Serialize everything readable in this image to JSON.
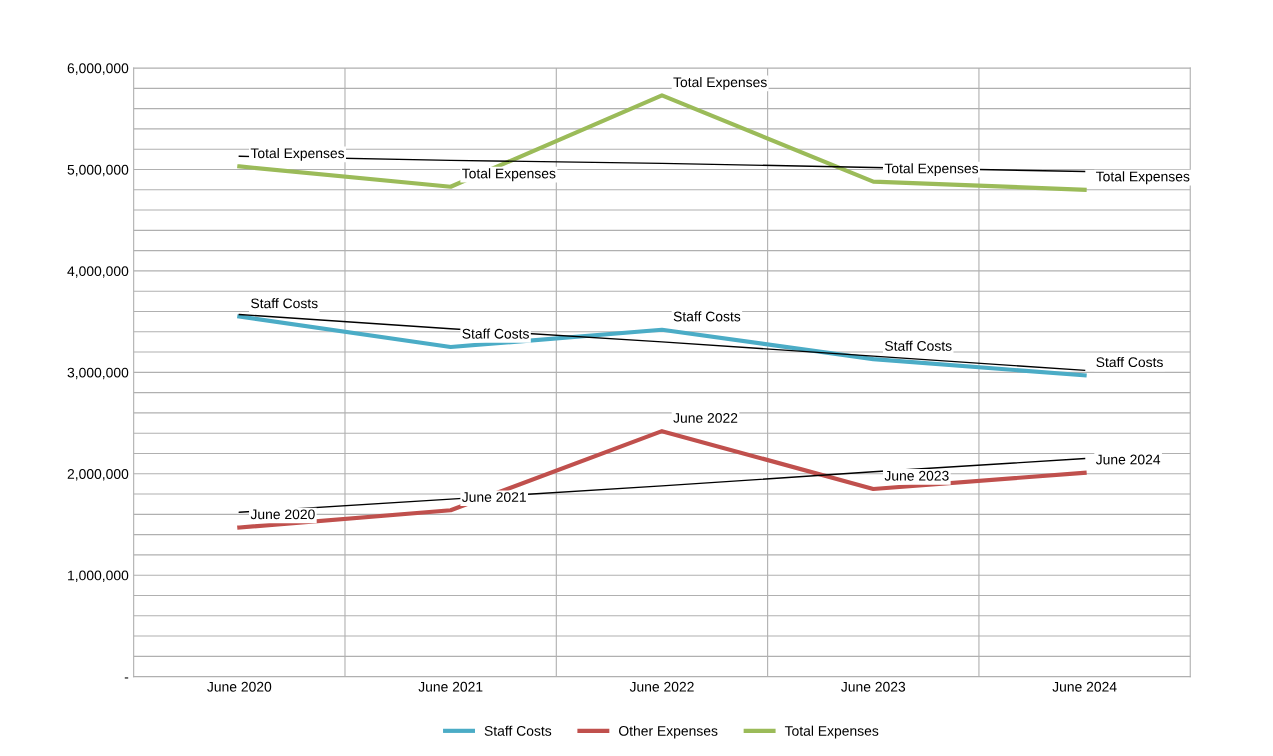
{
  "chart_data": {
    "type": "line",
    "categories": [
      "June 2020",
      "June 2021",
      "June 2022",
      "June 2023",
      "June 2024"
    ],
    "series": [
      {
        "name": "Staff Costs",
        "color": "#4bacc6",
        "values": [
          3550000,
          3250000,
          3420000,
          3130000,
          2970000
        ]
      },
      {
        "name": "Other Expenses",
        "color": "#c0504d",
        "values": [
          1470000,
          1640000,
          2420000,
          1850000,
          2010000
        ]
      },
      {
        "name": "Total Expenses",
        "color": "#9bbb59",
        "values": [
          5030000,
          4830000,
          5730000,
          4880000,
          4800000
        ]
      },
      {
        "color": "#000000",
        "values": [
          5130000,
          5090000,
          5060000,
          5020000,
          4980000
        ]
      },
      {
        "color": "#000000",
        "values": [
          3570000,
          3430000,
          3300000,
          3160000,
          3020000
        ]
      },
      {
        "color": "#000000",
        "values": [
          1620000,
          1750000,
          1880000,
          2020000,
          2150000
        ]
      }
    ],
    "ylim": [
      0,
      6000000
    ],
    "yticks": [
      {
        "value": 0,
        "label": "-"
      },
      {
        "value": 200000,
        "label": null
      },
      {
        "value": 400000,
        "label": null
      },
      {
        "value": 600000,
        "label": null
      },
      {
        "value": 800000,
        "label": null
      },
      {
        "value": 1000000,
        "label": "1,000,000"
      },
      {
        "value": 1200000,
        "label": null
      },
      {
        "value": 1400000,
        "label": null
      },
      {
        "value": 1600000,
        "label": null
      },
      {
        "value": 1800000,
        "label": null
      },
      {
        "value": 2000000,
        "label": "2,000,000"
      },
      {
        "value": 2200000,
        "label": null
      },
      {
        "value": 2400000,
        "label": null
      },
      {
        "value": 2600000,
        "label": null
      },
      {
        "value": 2800000,
        "label": null
      },
      {
        "value": 3000000,
        "label": "3,000,000"
      },
      {
        "value": 3200000,
        "label": null
      },
      {
        "value": 3400000,
        "label": null
      },
      {
        "value": 3600000,
        "label": null
      },
      {
        "value": 3800000,
        "label": null
      },
      {
        "value": 4000000,
        "label": "4,000,000"
      },
      {
        "value": 4200000,
        "label": null
      },
      {
        "value": 4400000,
        "label": null
      },
      {
        "value": 4600000,
        "label": null
      },
      {
        "value": 4800000,
        "label": null
      },
      {
        "value": 5000000,
        "label": "5,000,000"
      },
      {
        "value": 5200000,
        "label": null
      },
      {
        "value": 5400000,
        "label": null
      },
      {
        "value": 5600000,
        "label": null
      },
      {
        "value": 5800000,
        "label": null
      },
      {
        "value": 6000000,
        "label": "6,000,000"
      }
    ],
    "grid": true,
    "legend": "bottom",
    "marker": "none",
    "line_style": "solid",
    "annotations": [
      {
        "text": "Total Expenses",
        "x": "June 2020",
        "y": 5030000
      },
      {
        "text": "Total Expenses",
        "x": "June 2021",
        "y": 4830000
      },
      {
        "text": "Total Expenses",
        "x": "June 2022",
        "y": 5730000
      },
      {
        "text": "Total Expenses",
        "x": "June 2023",
        "y": 4880000
      },
      {
        "text": "Total Expenses",
        "x": "June 2024",
        "y": 4800000
      },
      {
        "text": "Staff Costs",
        "x": "June 2020",
        "y": 3550000
      },
      {
        "text": "Staff Costs",
        "x": "June 2021",
        "y": 3250000
      },
      {
        "text": "Staff Costs",
        "x": "June 2022",
        "y": 3420000
      },
      {
        "text": "Staff Costs",
        "x": "June 2023",
        "y": 3130000
      },
      {
        "text": "Staff Costs",
        "x": "June 2024",
        "y": 2970000
      },
      {
        "text": "June 2020",
        "x": "June 2020",
        "y": 1470000
      },
      {
        "text": "June 2021",
        "x": "June 2021",
        "y": 1640000
      },
      {
        "text": "June 2022",
        "x": "June 2022",
        "y": 2420000
      },
      {
        "text": "June 2023",
        "x": "June 2023",
        "y": 1850000
      },
      {
        "text": "June 2024",
        "x": "June 2024",
        "y": 2010000
      }
    ]
  }
}
